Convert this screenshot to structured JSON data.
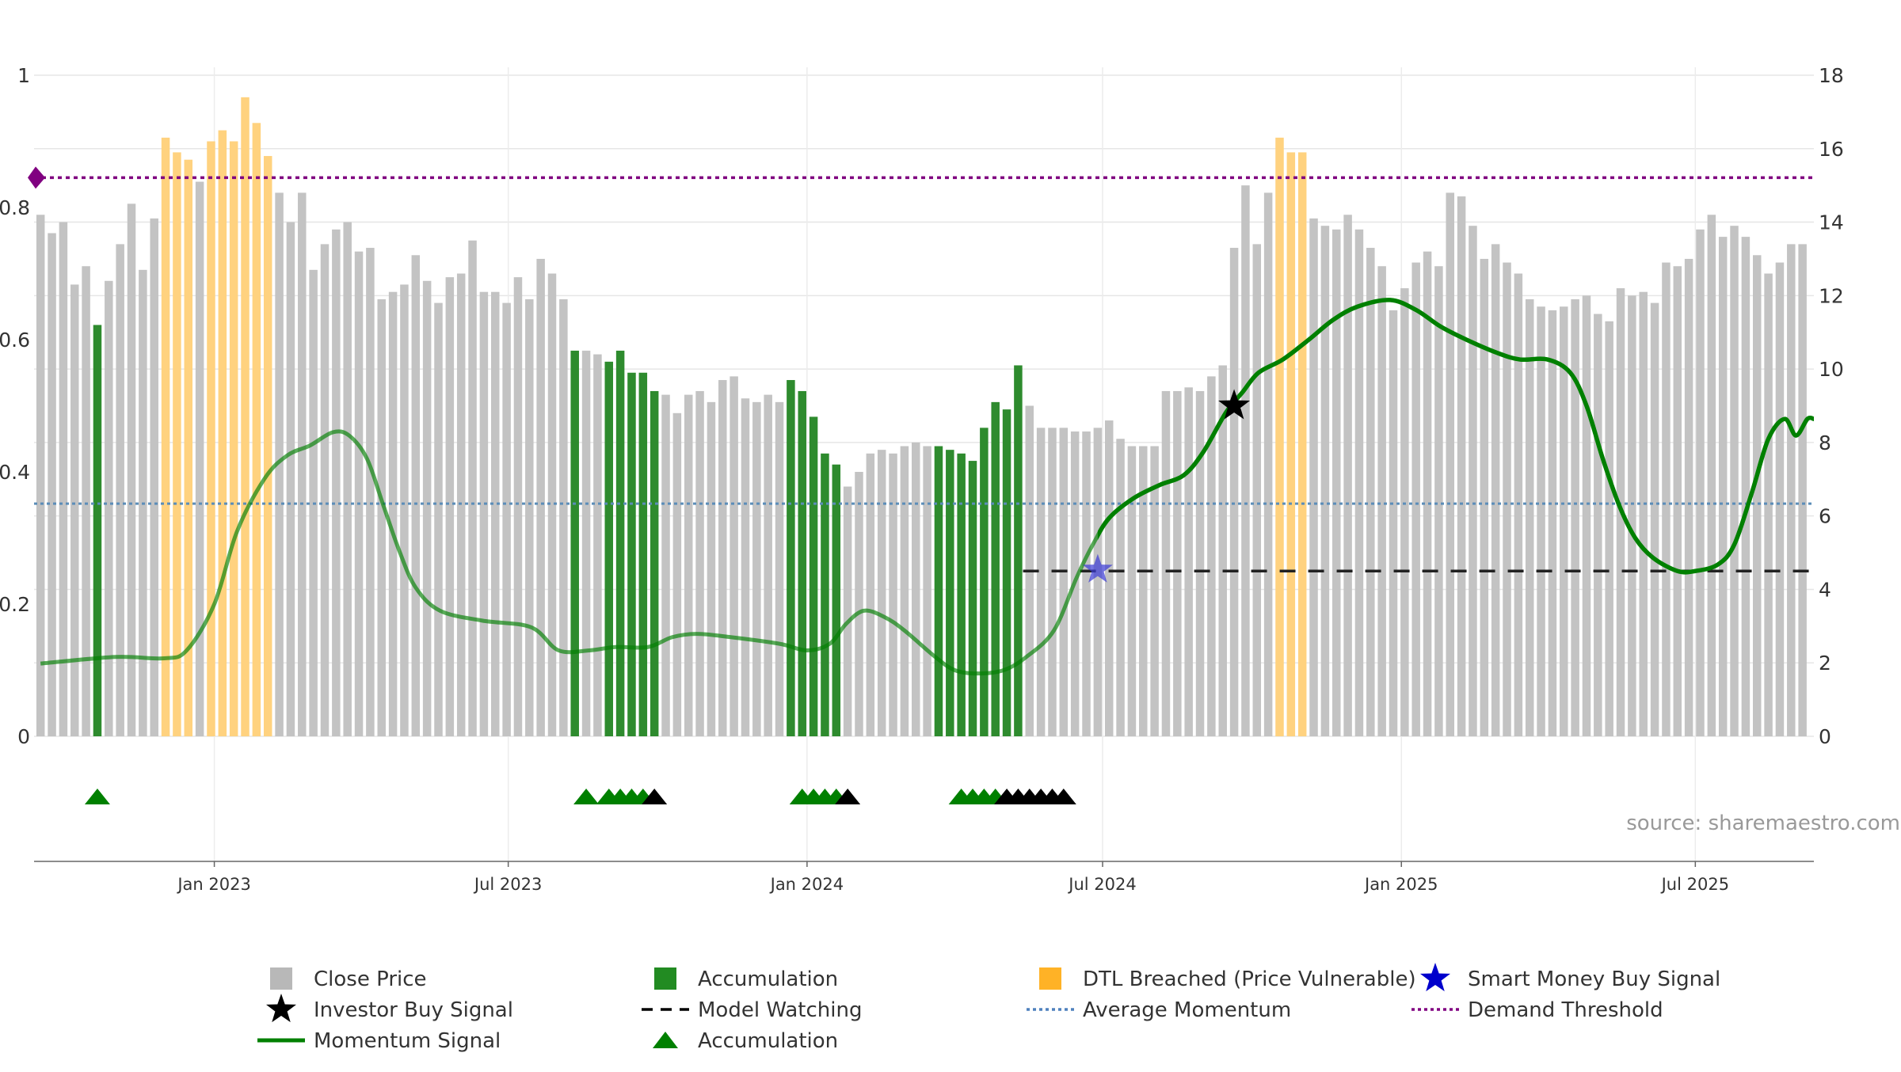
{
  "source_text": "source: sharemaestro.com",
  "legend": [
    {
      "label": "Close Price",
      "kind": "square",
      "color": "#b8b8b8"
    },
    {
      "label": "Accumulation",
      "kind": "square",
      "color": "#228b22"
    },
    {
      "label": "DTL Breached (Price Vulnerable)",
      "kind": "square",
      "color": "#ffa500"
    },
    {
      "label": "Smart Money Buy Signal",
      "kind": "star",
      "color": "#0000cc"
    },
    {
      "label": "Investor Buy Signal",
      "kind": "star",
      "color": "#000000"
    },
    {
      "label": "Model Watching",
      "kind": "dash",
      "color": "#000000"
    },
    {
      "label": "Average Momentum",
      "kind": "dot",
      "color": "#4f81bd"
    },
    {
      "label": "Demand Threshold",
      "kind": "dot",
      "color": "#800080"
    },
    {
      "label": "Momentum Signal",
      "kind": "line",
      "color": "#008000"
    },
    {
      "label": "Accumulation",
      "kind": "triangle",
      "color": "#008000"
    }
  ],
  "chart_data": {
    "type": "bar",
    "y_left": {
      "range": [
        0,
        1
      ],
      "ticks": [
        0,
        0.2,
        0.4,
        0.6,
        0.8,
        1
      ],
      "tick_labels": [
        "0",
        "0.2",
        "0.4",
        "0.6",
        "0.8",
        "1"
      ]
    },
    "y_right": {
      "range": [
        0,
        18
      ],
      "ticks": [
        0,
        2,
        4,
        6,
        8,
        10,
        12,
        14,
        16,
        18
      ],
      "tick_labels": [
        "0",
        "2",
        "4",
        "6",
        "8",
        "10",
        "12",
        "14",
        "16",
        "18"
      ]
    },
    "x_range": [
      "2022-09-12",
      "2025-09-12"
    ],
    "x_ticks": [
      {
        "date": "2023-01-01",
        "label": "Jan 2023"
      },
      {
        "date": "2023-07-01",
        "label": "Jul 2023"
      },
      {
        "date": "2024-01-01",
        "label": "Jan 2024"
      },
      {
        "date": "2024-07-01",
        "label": "Jul 2024"
      },
      {
        "date": "2025-01-01",
        "label": "Jan 2025"
      },
      {
        "date": "2025-07-01",
        "label": "Jul 2025"
      }
    ],
    "grid": true,
    "bar_start_date": "2022-09-16",
    "bar_interval_days": 7,
    "bars": [
      [
        14.2,
        "p"
      ],
      [
        13.7,
        "p"
      ],
      [
        14.0,
        "p"
      ],
      [
        12.3,
        "p"
      ],
      [
        12.8,
        "p"
      ],
      [
        11.2,
        "a"
      ],
      [
        12.4,
        "p"
      ],
      [
        13.4,
        "p"
      ],
      [
        14.5,
        "p"
      ],
      [
        12.7,
        "p"
      ],
      [
        14.1,
        "p"
      ],
      [
        16.3,
        "d"
      ],
      [
        15.9,
        "d"
      ],
      [
        15.7,
        "d"
      ],
      [
        15.1,
        "p"
      ],
      [
        16.2,
        "d"
      ],
      [
        16.5,
        "d"
      ],
      [
        16.2,
        "d"
      ],
      [
        17.4,
        "d"
      ],
      [
        16.7,
        "d"
      ],
      [
        15.8,
        "d"
      ],
      [
        14.8,
        "p"
      ],
      [
        14.0,
        "p"
      ],
      [
        14.8,
        "p"
      ],
      [
        12.7,
        "p"
      ],
      [
        13.4,
        "p"
      ],
      [
        13.8,
        "p"
      ],
      [
        14.0,
        "p"
      ],
      [
        13.2,
        "p"
      ],
      [
        13.3,
        "p"
      ],
      [
        11.9,
        "p"
      ],
      [
        12.1,
        "p"
      ],
      [
        12.3,
        "p"
      ],
      [
        13.1,
        "p"
      ],
      [
        12.4,
        "p"
      ],
      [
        11.8,
        "p"
      ],
      [
        12.5,
        "p"
      ],
      [
        12.6,
        "p"
      ],
      [
        13.5,
        "p"
      ],
      [
        12.1,
        "p"
      ],
      [
        12.1,
        "p"
      ],
      [
        11.8,
        "p"
      ],
      [
        12.5,
        "p"
      ],
      [
        11.9,
        "p"
      ],
      [
        13.0,
        "p"
      ],
      [
        12.6,
        "p"
      ],
      [
        11.9,
        "p"
      ],
      [
        10.5,
        "a"
      ],
      [
        10.5,
        "p"
      ],
      [
        10.4,
        "p"
      ],
      [
        10.2,
        "a"
      ],
      [
        10.5,
        "a"
      ],
      [
        9.9,
        "a"
      ],
      [
        9.9,
        "a"
      ],
      [
        9.4,
        "a"
      ],
      [
        9.3,
        "p"
      ],
      [
        8.8,
        "p"
      ],
      [
        9.3,
        "p"
      ],
      [
        9.4,
        "p"
      ],
      [
        9.1,
        "p"
      ],
      [
        9.7,
        "p"
      ],
      [
        9.8,
        "p"
      ],
      [
        9.2,
        "p"
      ],
      [
        9.1,
        "p"
      ],
      [
        9.3,
        "p"
      ],
      [
        9.1,
        "p"
      ],
      [
        9.7,
        "a"
      ],
      [
        9.4,
        "a"
      ],
      [
        8.7,
        "a"
      ],
      [
        7.7,
        "a"
      ],
      [
        7.4,
        "a"
      ],
      [
        6.8,
        "p"
      ],
      [
        7.2,
        "p"
      ],
      [
        7.7,
        "p"
      ],
      [
        7.8,
        "p"
      ],
      [
        7.7,
        "p"
      ],
      [
        7.9,
        "p"
      ],
      [
        8.0,
        "p"
      ],
      [
        7.9,
        "p"
      ],
      [
        7.9,
        "a"
      ],
      [
        7.8,
        "a"
      ],
      [
        7.7,
        "a"
      ],
      [
        7.5,
        "a"
      ],
      [
        8.4,
        "a"
      ],
      [
        9.1,
        "a"
      ],
      [
        8.9,
        "a"
      ],
      [
        10.1,
        "a"
      ],
      [
        9.0,
        "p"
      ],
      [
        8.4,
        "p"
      ],
      [
        8.4,
        "p"
      ],
      [
        8.4,
        "p"
      ],
      [
        8.3,
        "p"
      ],
      [
        8.3,
        "p"
      ],
      [
        8.4,
        "p"
      ],
      [
        8.6,
        "p"
      ],
      [
        8.1,
        "p"
      ],
      [
        7.9,
        "p"
      ],
      [
        7.9,
        "p"
      ],
      [
        7.9,
        "p"
      ],
      [
        9.4,
        "p"
      ],
      [
        9.4,
        "p"
      ],
      [
        9.5,
        "p"
      ],
      [
        9.4,
        "p"
      ],
      [
        9.8,
        "p"
      ],
      [
        10.1,
        "p"
      ],
      [
        13.3,
        "p"
      ],
      [
        15.0,
        "p"
      ],
      [
        13.4,
        "p"
      ],
      [
        14.8,
        "p"
      ],
      [
        16.3,
        "d"
      ],
      [
        15.9,
        "d"
      ],
      [
        15.9,
        "d"
      ],
      [
        14.1,
        "p"
      ],
      [
        13.9,
        "p"
      ],
      [
        13.8,
        "p"
      ],
      [
        14.2,
        "p"
      ],
      [
        13.8,
        "p"
      ],
      [
        13.3,
        "p"
      ],
      [
        12.8,
        "p"
      ],
      [
        11.6,
        "p"
      ],
      [
        12.2,
        "p"
      ],
      [
        12.9,
        "p"
      ],
      [
        13.2,
        "p"
      ],
      [
        12.8,
        "p"
      ],
      [
        14.8,
        "p"
      ],
      [
        14.7,
        "p"
      ],
      [
        13.9,
        "p"
      ],
      [
        13.0,
        "p"
      ],
      [
        13.4,
        "p"
      ],
      [
        12.9,
        "p"
      ],
      [
        12.6,
        "p"
      ],
      [
        11.9,
        "p"
      ],
      [
        11.7,
        "p"
      ],
      [
        11.6,
        "p"
      ],
      [
        11.7,
        "p"
      ],
      [
        11.9,
        "p"
      ],
      [
        12.0,
        "p"
      ],
      [
        11.5,
        "p"
      ],
      [
        11.3,
        "p"
      ],
      [
        12.2,
        "p"
      ],
      [
        12.0,
        "p"
      ],
      [
        12.1,
        "p"
      ],
      [
        11.8,
        "p"
      ],
      [
        12.9,
        "p"
      ],
      [
        12.8,
        "p"
      ],
      [
        13.0,
        "p"
      ],
      [
        13.8,
        "p"
      ],
      [
        14.2,
        "p"
      ],
      [
        13.6,
        "p"
      ],
      [
        13.9,
        "p"
      ],
      [
        13.6,
        "p"
      ],
      [
        13.1,
        "p"
      ],
      [
        12.6,
        "p"
      ],
      [
        12.9,
        "p"
      ],
      [
        13.4,
        "p"
      ],
      [
        13.4,
        "p"
      ]
    ],
    "momentum_signal": [
      [
        "2022-09-16",
        0.11
      ],
      [
        "2022-11-01",
        0.12
      ],
      [
        "2022-12-01",
        0.118
      ],
      [
        "2022-12-15",
        0.13
      ],
      [
        "2023-01-01",
        0.2
      ],
      [
        "2023-01-15",
        0.31
      ],
      [
        "2023-02-01",
        0.39
      ],
      [
        "2023-02-15",
        0.425
      ],
      [
        "2023-03-01",
        0.44
      ],
      [
        "2023-03-15",
        0.46
      ],
      [
        "2023-03-25",
        0.455
      ],
      [
        "2023-04-05",
        0.42
      ],
      [
        "2023-04-15",
        0.35
      ],
      [
        "2023-04-25",
        0.28
      ],
      [
        "2023-05-05",
        0.225
      ],
      [
        "2023-05-20",
        0.19
      ],
      [
        "2023-06-15",
        0.175
      ],
      [
        "2023-07-15",
        0.165
      ],
      [
        "2023-08-01",
        0.13
      ],
      [
        "2023-08-20",
        0.13
      ],
      [
        "2023-09-05",
        0.135
      ],
      [
        "2023-09-25",
        0.135
      ],
      [
        "2023-10-10",
        0.15
      ],
      [
        "2023-10-25",
        0.155
      ],
      [
        "2023-11-15",
        0.15
      ],
      [
        "2023-12-15",
        0.14
      ],
      [
        "2024-01-01",
        0.13
      ],
      [
        "2024-01-15",
        0.14
      ],
      [
        "2024-01-25",
        0.17
      ],
      [
        "2024-02-05",
        0.19
      ],
      [
        "2024-02-18",
        0.18
      ],
      [
        "2024-03-01",
        0.16
      ],
      [
        "2024-03-20",
        0.12
      ],
      [
        "2024-04-01",
        0.1
      ],
      [
        "2024-04-15",
        0.095
      ],
      [
        "2024-05-01",
        0.1
      ],
      [
        "2024-05-15",
        0.12
      ],
      [
        "2024-06-01",
        0.16
      ],
      [
        "2024-06-15",
        0.24
      ],
      [
        "2024-06-25",
        0.29
      ],
      [
        "2024-07-05",
        0.33
      ],
      [
        "2024-07-20",
        0.36
      ],
      [
        "2024-08-05",
        0.38
      ],
      [
        "2024-08-20",
        0.395
      ],
      [
        "2024-09-01",
        0.43
      ],
      [
        "2024-09-15",
        0.49
      ],
      [
        "2024-09-25",
        0.52
      ],
      [
        "2024-10-05",
        0.55
      ],
      [
        "2024-10-20",
        0.57
      ],
      [
        "2024-11-05",
        0.6
      ],
      [
        "2024-11-20",
        0.63
      ],
      [
        "2024-12-05",
        0.65
      ],
      [
        "2024-12-25",
        0.66
      ],
      [
        "2025-01-10",
        0.645
      ],
      [
        "2025-01-25",
        0.62
      ],
      [
        "2025-02-10",
        0.6
      ],
      [
        "2025-03-01",
        0.58
      ],
      [
        "2025-03-15",
        0.57
      ],
      [
        "2025-04-01",
        0.57
      ],
      [
        "2025-04-15",
        0.55
      ],
      [
        "2025-04-25",
        0.5
      ],
      [
        "2025-05-05",
        0.42
      ],
      [
        "2025-05-15",
        0.35
      ],
      [
        "2025-05-25",
        0.3
      ],
      [
        "2025-06-05",
        0.27
      ],
      [
        "2025-06-20",
        0.25
      ],
      [
        "2025-07-01",
        0.25
      ],
      [
        "2025-07-15",
        0.26
      ],
      [
        "2025-07-25",
        0.29
      ],
      [
        "2025-08-05",
        0.37
      ],
      [
        "2025-08-15",
        0.45
      ],
      [
        "2025-08-25",
        0.48
      ],
      [
        "2025-09-01",
        0.455
      ],
      [
        "2025-09-08",
        0.48
      ],
      [
        "2025-09-12",
        0.48
      ]
    ],
    "average_momentum": 0.352,
    "demand_threshold": 0.845,
    "model_watching": {
      "from": "2024-05-13",
      "to": "2025-09-12",
      "value": 0.25
    },
    "investor_buy_signal": {
      "date": "2024-09-20",
      "value": 0.5
    },
    "smart_money_buy_signal": {
      "date": "2024-06-28",
      "value": 0.252
    },
    "accumulation_markers": [
      {
        "date": "2022-10-21",
        "color": "green"
      },
      {
        "date": "2023-08-18",
        "color": "green"
      },
      {
        "date": "2023-09-01",
        "color": "green"
      },
      {
        "date": "2023-09-08",
        "color": "green"
      },
      {
        "date": "2023-09-15",
        "color": "green"
      },
      {
        "date": "2023-09-22",
        "color": "green"
      },
      {
        "date": "2023-09-29",
        "color": "black"
      },
      {
        "date": "2023-12-29",
        "color": "green"
      },
      {
        "date": "2024-01-05",
        "color": "green"
      },
      {
        "date": "2024-01-12",
        "color": "green"
      },
      {
        "date": "2024-01-19",
        "color": "green"
      },
      {
        "date": "2024-01-26",
        "color": "black"
      },
      {
        "date": "2024-04-05",
        "color": "green"
      },
      {
        "date": "2024-04-12",
        "color": "green"
      },
      {
        "date": "2024-04-19",
        "color": "green"
      },
      {
        "date": "2024-04-26",
        "color": "green"
      },
      {
        "date": "2024-05-03",
        "color": "black"
      },
      {
        "date": "2024-05-10",
        "color": "black"
      },
      {
        "date": "2024-05-17",
        "color": "black"
      },
      {
        "date": "2024-05-24",
        "color": "black"
      },
      {
        "date": "2024-05-31",
        "color": "black"
      },
      {
        "date": "2024-06-07",
        "color": "black"
      }
    ]
  }
}
